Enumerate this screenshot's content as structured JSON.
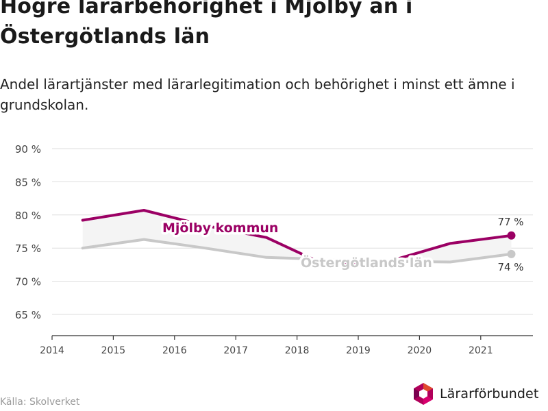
{
  "title": "Högre lärarbehörighet i Mjölby än i Östergötlands län",
  "subtitle": "Andel lärartjänster med lärarlegitimation och behörighet i minst ett ämne i grundskolan.",
  "source": "Källa: Skolverket",
  "logo_text": "Lärarförbundet",
  "chart_data": {
    "type": "line",
    "y_ticks": [
      "90 %",
      "85 %",
      "80 %",
      "75 %",
      "70 %",
      "65 %"
    ],
    "x_ticks": [
      "2014",
      "2015",
      "2016",
      "2017",
      "2018",
      "2019",
      "2020",
      "2021"
    ],
    "ylim": [
      62,
      92
    ],
    "xlim": [
      2014,
      2021.8
    ],
    "series": [
      {
        "name": "Mjölby kommun",
        "color": "#9b0064",
        "x": [
          2014.5,
          2015.5,
          2016.5,
          2017.5,
          2018.5,
          2019.5,
          2020.5,
          2021.5
        ],
        "y": [
          79.2,
          80.7,
          78.4,
          76.6,
          72.3,
          73.0,
          75.7,
          76.9
        ],
        "end_label": "77 %"
      },
      {
        "name": "Östergötlands län",
        "color": "#c8c8c8",
        "x": [
          2014.5,
          2015.5,
          2016.5,
          2017.5,
          2018.5,
          2019.5,
          2020.5,
          2021.5
        ],
        "y": [
          75.0,
          76.3,
          75.0,
          73.6,
          73.3,
          73.0,
          72.9,
          74.1
        ],
        "end_label": "74 %"
      }
    ],
    "grid": true
  },
  "colors": {
    "accent": "#9b0064",
    "secondary": "#c8c8c8",
    "grid": "#dddddd"
  }
}
